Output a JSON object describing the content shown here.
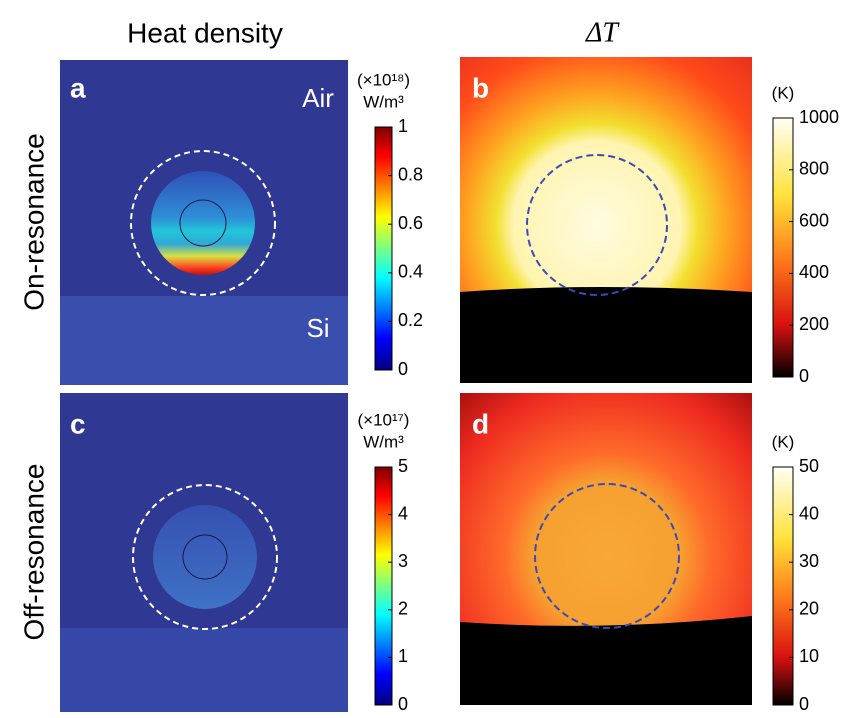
{
  "column_titles": [
    "Heat density",
    "ΔT"
  ],
  "row_labels": [
    "On-resonance",
    "Off-resonance"
  ],
  "panels": [
    {
      "label": "a",
      "annotations": [
        "Air",
        "Si"
      ],
      "colorbar": {
        "unit": [
          "(×10¹⁸)",
          "W/m³"
        ],
        "lim": [
          0,
          1
        ],
        "ticks": [
          0,
          0.2,
          0.4,
          0.6,
          0.8,
          1
        ]
      }
    },
    {
      "label": "b",
      "colorbar": {
        "unit": [
          "(K)"
        ],
        "lim": [
          0,
          1000
        ],
        "ticks": [
          0,
          200,
          400,
          600,
          800,
          1000
        ]
      }
    },
    {
      "label": "c",
      "colorbar": {
        "unit": [
          "(×10¹⁷)",
          "W/m³"
        ],
        "lim": [
          0,
          5
        ],
        "ticks": [
          0,
          1,
          2,
          3,
          4,
          5
        ]
      }
    },
    {
      "label": "d",
      "colorbar": {
        "unit": [
          "(K)"
        ],
        "lim": [
          0,
          50
        ],
        "ticks": [
          0,
          10,
          20,
          30,
          40,
          50
        ]
      }
    }
  ]
}
